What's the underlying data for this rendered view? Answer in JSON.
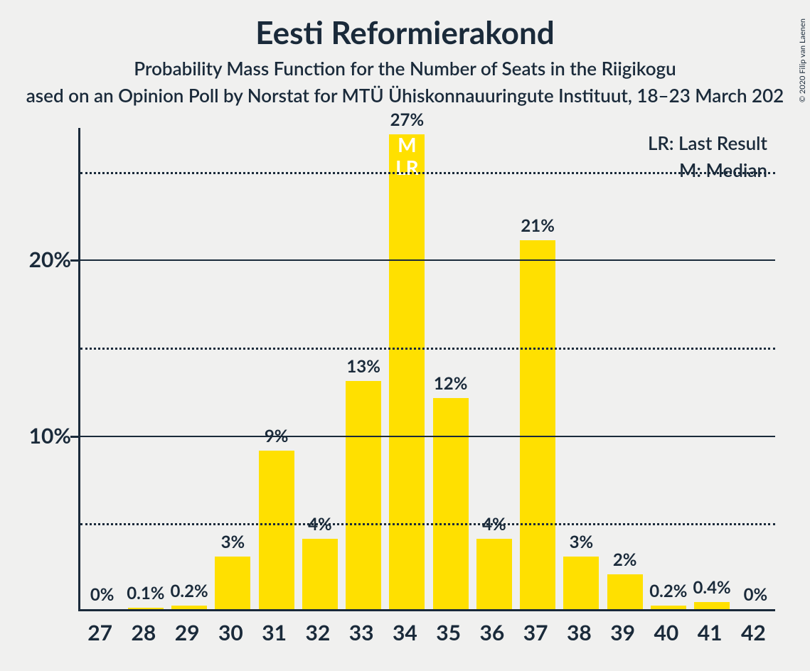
{
  "title": "Eesti Reformierakond",
  "subtitle1": "Probability Mass Function for the Number of Seats in the Riigikogu",
  "subtitle2": "ased on an Opinion Poll by Norstat for MTÜ Ühiskonnauuringute Instituut, 18–23 March 202",
  "copyright": "© 2020 Filip van Laenen",
  "legend": {
    "lr": "LR: Last Result",
    "m": "M: Median"
  },
  "chart": {
    "type": "bar",
    "bar_color": "#ffe000",
    "background_color": "#f0f0ef",
    "axis_color": "#1a2a3a",
    "grid_major_color": "#1a2a3a",
    "grid_minor_color": "#1a2a3a",
    "ylim_max": 27.5,
    "y_major_ticks": [
      10,
      20
    ],
    "y_minor_ticks": [
      5,
      15,
      25
    ],
    "y_tick_suffix": "%",
    "bar_width_ratio": 0.82,
    "label_fontsize": 24,
    "xlabel_fontsize": 30,
    "ylabel_fontsize": 30,
    "categories": [
      "27",
      "28",
      "29",
      "30",
      "31",
      "32",
      "33",
      "34",
      "35",
      "36",
      "37",
      "38",
      "39",
      "40",
      "41",
      "42"
    ],
    "values": [
      0,
      0.1,
      0.2,
      3,
      9,
      4,
      13,
      27,
      12,
      4,
      21,
      3,
      2,
      0.2,
      0.4,
      0
    ],
    "value_labels": [
      "0%",
      "0.1%",
      "0.2%",
      "3%",
      "9%",
      "4%",
      "13%",
      "27%",
      "12%",
      "4%",
      "21%",
      "3%",
      "2%",
      "0.2%",
      "0.4%",
      "0%"
    ],
    "median_index": 7,
    "median_text_m": "M",
    "median_text_lr": "LR",
    "inbar_label_color": "#ffffff"
  }
}
